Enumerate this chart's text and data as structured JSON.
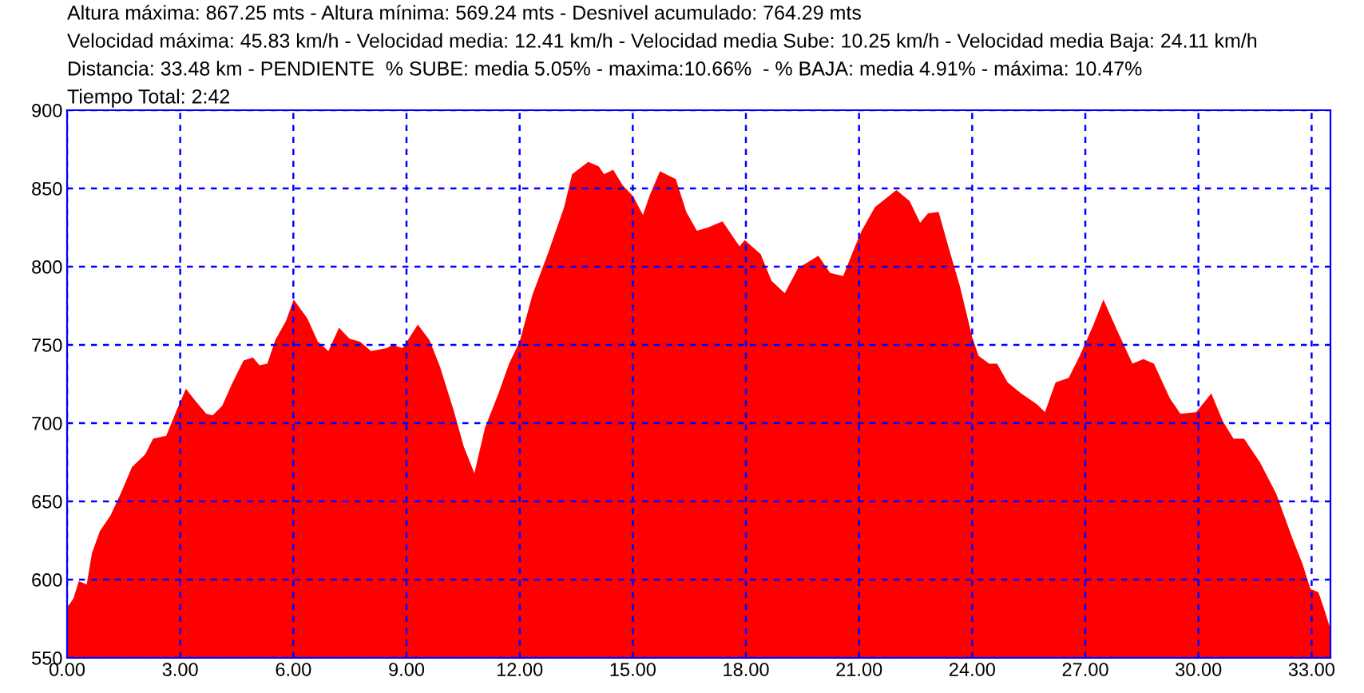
{
  "chart_data": {
    "type": "area",
    "annotations": [
      "Altura máxima: 867.25 mts - Altura mínima: 569.24 mts - Desnivel acumulado: 764.29 mts",
      "Velocidad máxima: 45.83 km/h - Velocidad media: 12.41 km/h - Velocidad media Sube: 10.25 km/h - Velocidad media Baja: 24.11 km/h",
      "Distancia: 33.48 km - PENDIENTE  % SUBE: media 5.05% - maxima:10.66%  - % BAJA: media 4.91% - máxima: 10.47%",
      "Tiempo Total: 2:42"
    ],
    "x": [
      0,
      0.17,
      0.31,
      0.52,
      0.66,
      0.87,
      1.15,
      1.44,
      1.72,
      2.07,
      2.28,
      2.63,
      2.92,
      3.15,
      3.41,
      3.69,
      3.86,
      4.11,
      4.39,
      4.68,
      4.93,
      5.1,
      5.31,
      5.52,
      5.8,
      6.01,
      6.37,
      6.65,
      6.93,
      7.21,
      7.49,
      7.77,
      8.06,
      8.48,
      8.62,
      8.9,
      9.3,
      9.61,
      9.89,
      10.24,
      10.52,
      10.8,
      11.08,
      11.44,
      11.72,
      12.0,
      12.34,
      12.76,
      13.18,
      13.39,
      13.82,
      14.1,
      14.24,
      14.48,
      14.73,
      15.01,
      15.27,
      15.44,
      15.72,
      16.14,
      16.42,
      16.7,
      16.99,
      17.38,
      17.83,
      17.97,
      18.39,
      18.68,
      19.03,
      19.38,
      19.92,
      20.23,
      20.58,
      20.86,
      21.07,
      21.42,
      21.99,
      22.34,
      22.62,
      22.83,
      23.11,
      23.39,
      23.68,
      24.0,
      24.17,
      24.45,
      24.66,
      24.94,
      25.3,
      25.72,
      25.93,
      26.21,
      26.56,
      26.85,
      27.2,
      27.48,
      27.83,
      28.25,
      28.54,
      28.82,
      29.24,
      29.52,
      29.94,
      30.34,
      30.65,
      30.93,
      31.21,
      31.63,
      32.06,
      32.48,
      32.76,
      32.97,
      33.18,
      33.32,
      33.48
    ],
    "series": [
      {
        "color": "#ff0000",
        "values": [
          582,
          588,
          599,
          597,
          617,
          631,
          641,
          656,
          672,
          680,
          690,
          692,
          709,
          722,
          714,
          706,
          705,
          711,
          726,
          740,
          742,
          737,
          738,
          753,
          765,
          779,
          767,
          752,
          746,
          761,
          754,
          752,
          746,
          748,
          750,
          748,
          763,
          753,
          736,
          709,
          685,
          668,
          697,
          719,
          738,
          752,
          782,
          809,
          838,
          859,
          867,
          864,
          859,
          862,
          852,
          845,
          833,
          845,
          861,
          856,
          835,
          823,
          825,
          829,
          813,
          817,
          808,
          791,
          783,
          799,
          807,
          796,
          794,
          811,
          823,
          838,
          849,
          842,
          828,
          834,
          835,
          811,
          787,
          755,
          743,
          738,
          738,
          726,
          719,
          712,
          707,
          726,
          729,
          743,
          762,
          779,
          760,
          738,
          741,
          738,
          716,
          706,
          707,
          719,
          701,
          690,
          690,
          675,
          655,
          627,
          610,
          594,
          592,
          582,
          570
        ]
      }
    ],
    "xlim": [
      0,
      33.5
    ],
    "ylim": [
      550,
      900
    ],
    "xticks": [
      {
        "value": 0,
        "label": "0.00"
      },
      {
        "value": 3,
        "label": "3.00"
      },
      {
        "value": 6,
        "label": "6.00"
      },
      {
        "value": 9,
        "label": "9.00"
      },
      {
        "value": 12,
        "label": "12.00"
      },
      {
        "value": 15,
        "label": "15.00"
      },
      {
        "value": 18,
        "label": "18.00"
      },
      {
        "value": 21,
        "label": "21.00"
      },
      {
        "value": 24,
        "label": "24.00"
      },
      {
        "value": 27,
        "label": "27.00"
      },
      {
        "value": 30,
        "label": "30.00"
      },
      {
        "value": 33,
        "label": "33.00"
      }
    ],
    "yticks": [
      550,
      600,
      650,
      700,
      750,
      800,
      850,
      900
    ],
    "grid": true
  }
}
